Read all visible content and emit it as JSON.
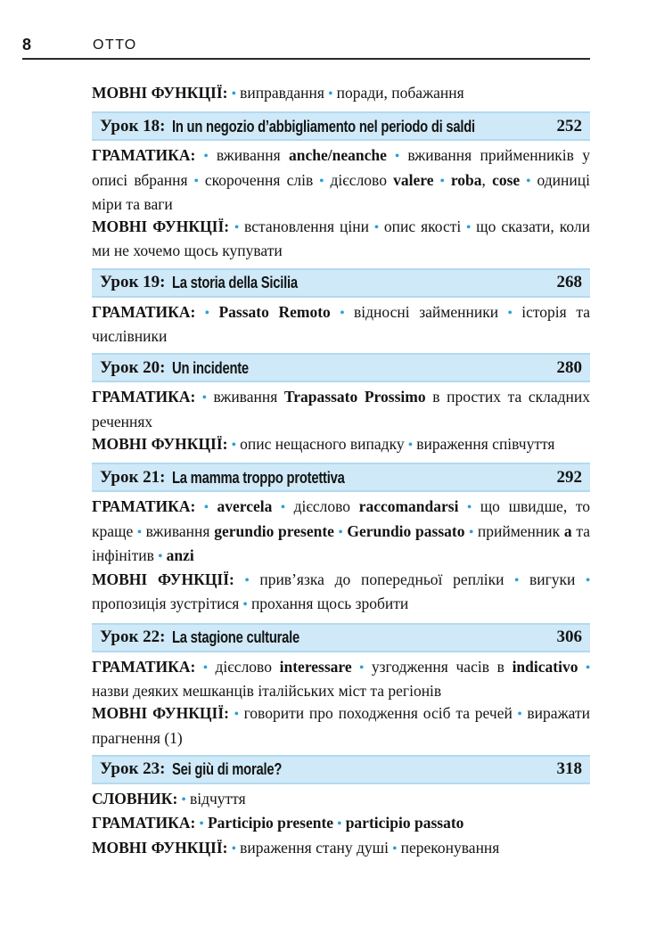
{
  "page": {
    "number": "8",
    "running_title": "ОТТО"
  },
  "colors": {
    "bar_bg": "#cfe9f8",
    "bar_edge": "#b2daf0",
    "bullet": "#2a9ed6",
    "text": "#141414",
    "rule": "#2a2a2a"
  },
  "icons": {
    "bullet": "•"
  },
  "intro_section": {
    "label": "МОВНІ ФУНКЦІЇ:",
    "items": [
      [
        {
          "t": "виправдання"
        }
      ],
      [
        {
          "t": "поради, побажання"
        }
      ]
    ]
  },
  "lessons": [
    {
      "label": "Урок 18:",
      "title": "In un negozio d’abbigliamento nel periodo di saldi",
      "page_ref": "252",
      "sections": [
        {
          "label": "ГРАМАТИКА:",
          "items": [
            [
              {
                "t": "вживання "
              },
              {
                "t": "anche/neanche",
                "b": true
              }
            ],
            [
              {
                "t": "вживання прийменників у описі вбрання"
              }
            ],
            [
              {
                "t": "скорочення слів"
              }
            ],
            [
              {
                "t": "дієслово "
              },
              {
                "t": "valere",
                "b": true
              }
            ],
            [
              {
                "t": "roba",
                "b": true
              },
              {
                "t": ", "
              },
              {
                "t": "cose",
                "b": true
              }
            ],
            [
              {
                "t": "одиниці міри та ваги"
              }
            ]
          ]
        },
        {
          "label": "МОВНІ ФУНКЦІЇ:",
          "items": [
            [
              {
                "t": "встановлення ціни"
              }
            ],
            [
              {
                "t": "опис якості"
              }
            ],
            [
              {
                "t": "що сказати, коли ми не хочемо щось купувати"
              }
            ]
          ]
        }
      ]
    },
    {
      "label": "Урок 19:",
      "title": "La storia della Sicilia",
      "page_ref": "268",
      "sections": [
        {
          "label": "ГРАМАТИКА:",
          "items": [
            [
              {
                "t": "Passato Remoto",
                "b": true
              }
            ],
            [
              {
                "t": "відносні займенники"
              }
            ],
            [
              {
                "t": "історія та числівники"
              }
            ]
          ]
        }
      ]
    },
    {
      "label": "Урок 20:",
      "title": "Un incidente",
      "page_ref": "280",
      "sections": [
        {
          "label": "ГРАМАТИКА:",
          "items": [
            [
              {
                "t": "вживання "
              },
              {
                "t": "Trapassato Prossimo",
                "b": true
              },
              {
                "t": " в простих та складних реченнях"
              }
            ]
          ]
        },
        {
          "label": "МОВНІ ФУНКЦІЇ:",
          "items": [
            [
              {
                "t": "опис нещасного випадку"
              }
            ],
            [
              {
                "t": "вираження співчуття"
              }
            ]
          ]
        }
      ]
    },
    {
      "label": "Урок 21:",
      "title": "La mamma troppo protettiva",
      "page_ref": "292",
      "sections": [
        {
          "label": "ГРАМАТИКА:",
          "items": [
            [
              {
                "t": "avercela",
                "b": true
              }
            ],
            [
              {
                "t": "дієслово "
              },
              {
                "t": "raccomandarsi",
                "b": true
              }
            ],
            [
              {
                "t": "що швидше, то краще"
              }
            ],
            [
              {
                "t": "вживання "
              },
              {
                "t": "gerundio presente",
                "b": true
              }
            ],
            [
              {
                "t": "Gerundio passato",
                "b": true
              }
            ],
            [
              {
                "t": "прийменник "
              },
              {
                "t": "a",
                "b": true
              },
              {
                "t": " та інфінітив"
              }
            ],
            [
              {
                "t": "anzi",
                "b": true
              }
            ]
          ]
        },
        {
          "label": "МОВНІ ФУНКЦІЇ:",
          "items": [
            [
              {
                "t": "прив’язка до попередньої репліки"
              }
            ],
            [
              {
                "t": "вигуки"
              }
            ],
            [
              {
                "t": "пропозиція зустрітися"
              }
            ],
            [
              {
                "t": "прохання щось зробити"
              }
            ]
          ]
        }
      ]
    },
    {
      "label": "Урок 22:",
      "title": "La stagione culturale",
      "page_ref": "306",
      "sections": [
        {
          "label": "ГРАМАТИКА:",
          "items": [
            [
              {
                "t": "дієслово "
              },
              {
                "t": "interessare",
                "b": true
              }
            ],
            [
              {
                "t": "узгодження часів в "
              },
              {
                "t": "indicativo",
                "b": true
              }
            ],
            [
              {
                "t": "назви деяких мешканців італійських міст та регіонів"
              }
            ]
          ]
        },
        {
          "label": "МОВНІ ФУНКЦІЇ:",
          "items": [
            [
              {
                "t": "говорити про походження осіб та речей"
              }
            ],
            [
              {
                "t": "виражати прагнення (1)"
              }
            ]
          ]
        }
      ]
    },
    {
      "label": "Урок 23:",
      "title": "Sei giù di morale?",
      "page_ref": "318",
      "sections": [
        {
          "label": "СЛОВНИК:",
          "items": [
            [
              {
                "t": "відчуття"
              }
            ]
          ]
        },
        {
          "label": "ГРАМАТИКА:",
          "items": [
            [
              {
                "t": "Participio presente",
                "b": true
              }
            ],
            [
              {
                "t": "participio passato",
                "b": true
              }
            ]
          ]
        },
        {
          "label": "МОВНІ ФУНКЦІЇ:",
          "items": [
            [
              {
                "t": "вираження стану душі"
              }
            ],
            [
              {
                "t": "переконування"
              }
            ]
          ]
        }
      ]
    }
  ]
}
